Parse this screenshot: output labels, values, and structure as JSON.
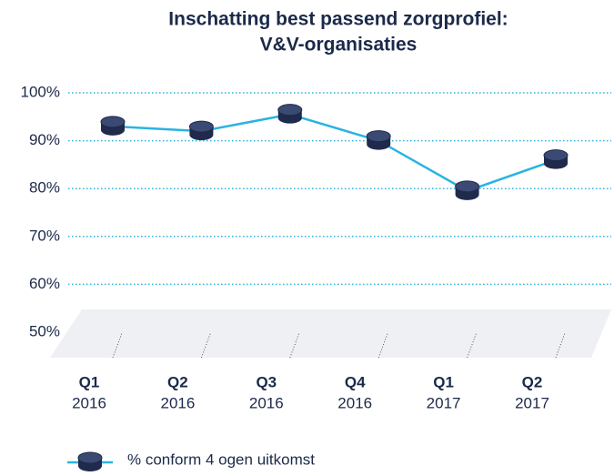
{
  "chart_data": {
    "type": "line",
    "title": [
      "Inschatting best passend zorgprofiel:",
      "V&V-organisaties"
    ],
    "categories": [
      [
        "Q1",
        "2016"
      ],
      [
        "Q2",
        "2016"
      ],
      [
        "Q3",
        "2016"
      ],
      [
        "Q4",
        "2016"
      ],
      [
        "Q1",
        "2017"
      ],
      [
        "Q2",
        "2017"
      ]
    ],
    "series": [
      {
        "name": "% conform 4 ogen uitkomst",
        "color": "#29b3e2",
        "marker_color": "#1f2a4d",
        "values": [
          93,
          92,
          95.5,
          90,
          79.5,
          86
        ]
      }
    ],
    "ylim": [
      50,
      100
    ],
    "yticks": [
      {
        "value": 50,
        "label": "50%"
      },
      {
        "value": 60,
        "label": "60%"
      },
      {
        "value": 70,
        "label": "70%"
      },
      {
        "value": 80,
        "label": "80%"
      },
      {
        "value": 90,
        "label": "90%"
      },
      {
        "value": 100,
        "label": "100%"
      }
    ],
    "grid": true,
    "legend": "bottom"
  }
}
